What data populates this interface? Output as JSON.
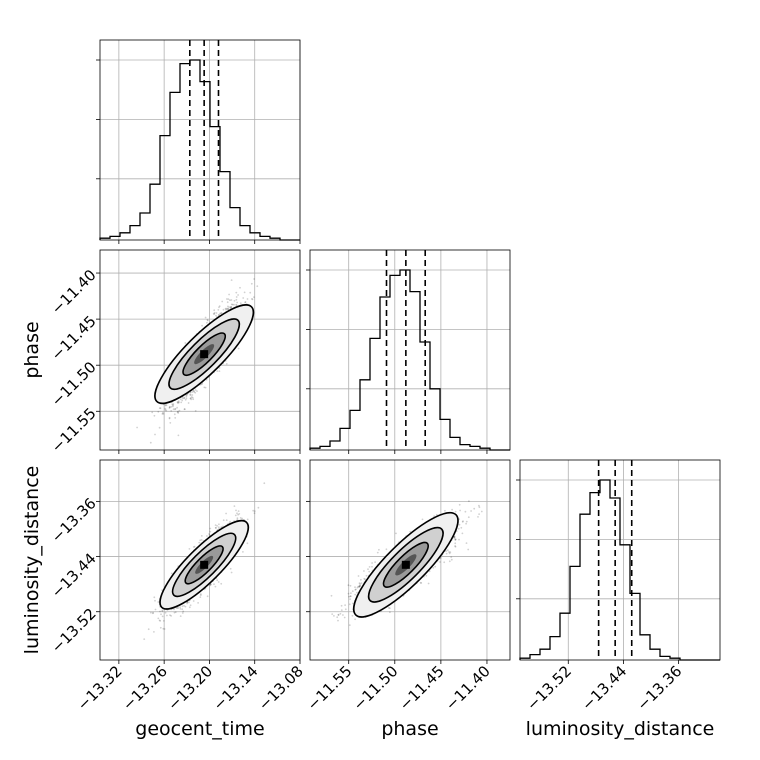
{
  "chart_data": {
    "type": "corner",
    "parameters": [
      "geocent_time",
      "phase",
      "luminosity_distance"
    ],
    "axis_labels": [
      "geocent_time",
      "phase",
      "luminosity_distance"
    ],
    "ranges": [
      [
        -13.345,
        -13.08
      ],
      [
        -11.592,
        -11.375
      ],
      [
        -13.59,
        -13.3
      ]
    ],
    "ticks": [
      {
        "values": [
          -13.32,
          -13.26,
          -13.2,
          -13.14,
          -13.08
        ],
        "labels": [
          "−13.32",
          "−13.26",
          "−13.20",
          "−13.14",
          "−13.08"
        ]
      },
      {
        "values": [
          -11.55,
          -11.5,
          -11.45,
          -11.4
        ],
        "labels": [
          "−11.55",
          "−11.50",
          "−11.45",
          "−11.40"
        ]
      },
      {
        "values": [
          -13.52,
          -13.44,
          -13.36
        ],
        "labels": [
          "−13.52",
          "−13.44",
          "−13.36"
        ]
      }
    ],
    "quantiles": [
      [
        -13.226,
        -13.207,
        -13.188
      ],
      [
        -11.509,
        -11.488,
        -11.467
      ],
      [
        -13.476,
        -13.452,
        -13.428
      ]
    ],
    "histograms": [
      {
        "edges_start": -13.345,
        "bin_width": 0.01325,
        "counts": [
          0.01,
          0.02,
          0.04,
          0.08,
          0.15,
          0.31,
          0.58,
          0.82,
          0.98,
          1.0,
          0.88,
          0.63,
          0.38,
          0.18,
          0.08,
          0.04,
          0.02,
          0.01,
          0.0,
          0.0
        ],
        "max_ticks": [
          0.34,
          0.67,
          1.0
        ]
      },
      {
        "edges_start": -11.592,
        "bin_width": 0.01085,
        "counts": [
          0.01,
          0.02,
          0.05,
          0.12,
          0.22,
          0.39,
          0.62,
          0.85,
          0.97,
          1.0,
          0.88,
          0.6,
          0.34,
          0.17,
          0.07,
          0.03,
          0.02,
          0.01,
          0.0,
          0.0
        ],
        "max_ticks": [
          0.34,
          0.67,
          1.0
        ]
      },
      {
        "edges_start": -13.59,
        "bin_width": 0.0145,
        "counts": [
          0.01,
          0.03,
          0.06,
          0.13,
          0.26,
          0.52,
          0.81,
          0.93,
          1.0,
          0.9,
          0.64,
          0.37,
          0.14,
          0.06,
          0.02,
          0.01,
          0.0,
          0.0,
          0.0,
          0.0
        ],
        "max_ticks": [
          0.34,
          0.67,
          1.0
        ]
      }
    ],
    "correlation": 0.85,
    "means": [
      -13.207,
      -11.488,
      -13.452
    ],
    "stds": [
      0.022,
      0.025,
      0.028
    ],
    "grid": true
  }
}
